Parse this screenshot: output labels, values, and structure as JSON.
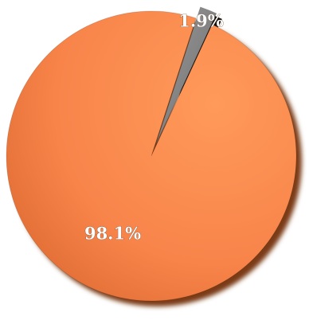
{
  "chart_data": {
    "type": "pie",
    "style": "3d-exploded",
    "title": "",
    "legend": "none",
    "slices": [
      {
        "value": 98.1,
        "label": "98.1%",
        "color": "#ff8c4a",
        "shade": "#7a3b16"
      },
      {
        "value": 1.9,
        "label": "1.9%",
        "color": "#8a8a8a",
        "shade": "#111111"
      }
    ]
  }
}
